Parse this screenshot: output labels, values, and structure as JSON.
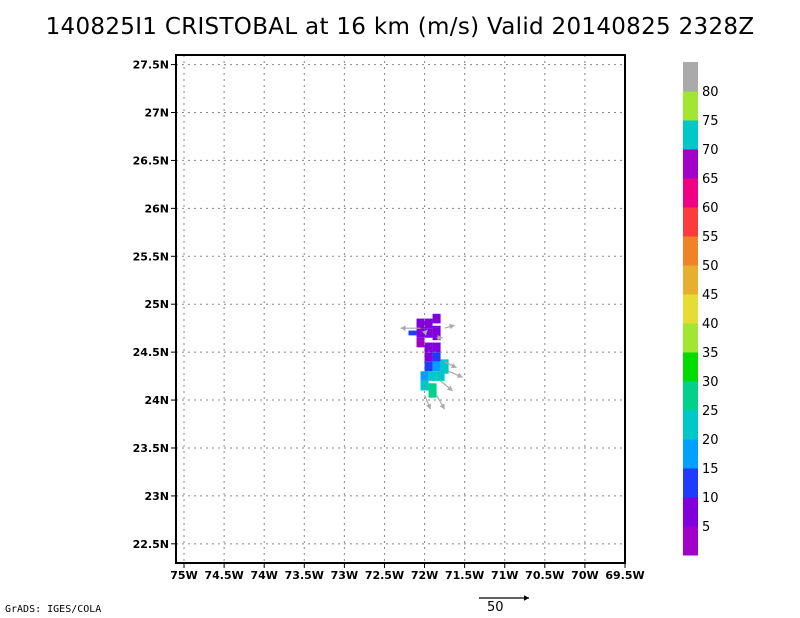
{
  "title": "140825I1 CRISTOBAL at 16 km (m/s) Valid 20140825 2328Z",
  "credit": "GrADS: IGES/COLA",
  "reference_vector_label": "50",
  "colorbar": {
    "labels": [
      "5",
      "10",
      "15",
      "20",
      "25",
      "30",
      "35",
      "40",
      "45",
      "50",
      "55",
      "60",
      "65",
      "70",
      "75",
      "80"
    ],
    "colors": [
      "#a000c8",
      "#8200dc",
      "#1e3cff",
      "#00a0ff",
      "#00c8c8",
      "#00d28c",
      "#00dc00",
      "#a0e632",
      "#e6dc32",
      "#e6af2d",
      "#f08228",
      "#fa3c3c",
      "#f00082",
      "#a000c8",
      "#00c8c8",
      "#a0e632",
      "#aaaaaa"
    ]
  },
  "chart_data": {
    "type": "heatmap",
    "title": "140825I1 CRISTOBAL at 16 km (m/s) Valid 20140825 2328Z",
    "xlabel": "",
    "ylabel": "",
    "xlim": [
      -75.1,
      -69.5
    ],
    "ylim": [
      22.3,
      27.6
    ],
    "grid": true,
    "x_ticks": [
      -75,
      -74.5,
      -74,
      -73.5,
      -73,
      -72.5,
      -72,
      -71.5,
      -71,
      -70.5,
      -70,
      -69.5
    ],
    "x_tick_labels": [
      "75W",
      "74.5W",
      "74W",
      "73.5W",
      "73W",
      "72.5W",
      "72W",
      "71.5W",
      "71W",
      "70.5W",
      "70W",
      "69.5W"
    ],
    "y_ticks": [
      22.5,
      23,
      23.5,
      24,
      24.5,
      25,
      25.5,
      26,
      26.5,
      27,
      27.5
    ],
    "y_tick_labels": [
      "22.5N",
      "23N",
      "23.5N",
      "24N",
      "24.5N",
      "25N",
      "25.5N",
      "26N",
      "26.5N",
      "27N",
      "27.5N"
    ],
    "cells": [
      {
        "lon": -72.05,
        "lat": 24.8,
        "w": 0.1,
        "h": 0.1,
        "color": "#8200dc"
      },
      {
        "lon": -71.95,
        "lat": 24.8,
        "w": 0.1,
        "h": 0.1,
        "color": "#8200dc"
      },
      {
        "lon": -71.85,
        "lat": 24.85,
        "w": 0.1,
        "h": 0.1,
        "color": "#8200dc"
      },
      {
        "lon": -72.15,
        "lat": 24.7,
        "w": 0.1,
        "h": 0.05,
        "color": "#1e3cff"
      },
      {
        "lon": -72.05,
        "lat": 24.7,
        "w": 0.1,
        "h": 0.1,
        "color": "#8200dc"
      },
      {
        "lon": -71.95,
        "lat": 24.7,
        "w": 0.1,
        "h": 0.1,
        "color": "#8200dc"
      },
      {
        "lon": -71.85,
        "lat": 24.7,
        "w": 0.1,
        "h": 0.15,
        "color": "#8200dc"
      },
      {
        "lon": -72.05,
        "lat": 24.6,
        "w": 0.1,
        "h": 0.1,
        "color": "#a000c8"
      },
      {
        "lon": -71.95,
        "lat": 24.55,
        "w": 0.1,
        "h": 0.1,
        "color": "#8200dc"
      },
      {
        "lon": -71.85,
        "lat": 24.55,
        "w": 0.1,
        "h": 0.1,
        "color": "#8200dc"
      },
      {
        "lon": -71.95,
        "lat": 24.45,
        "w": 0.1,
        "h": 0.1,
        "color": "#8200dc"
      },
      {
        "lon": -71.85,
        "lat": 24.45,
        "w": 0.1,
        "h": 0.1,
        "color": "#1e3cff"
      },
      {
        "lon": -71.95,
        "lat": 24.35,
        "w": 0.1,
        "h": 0.1,
        "color": "#1e3cff"
      },
      {
        "lon": -71.85,
        "lat": 24.35,
        "w": 0.1,
        "h": 0.1,
        "color": "#00a0ff"
      },
      {
        "lon": -71.75,
        "lat": 24.35,
        "w": 0.1,
        "h": 0.15,
        "color": "#00c8c8"
      },
      {
        "lon": -72.0,
        "lat": 24.25,
        "w": 0.1,
        "h": 0.1,
        "color": "#00a0ff"
      },
      {
        "lon": -71.9,
        "lat": 24.25,
        "w": 0.1,
        "h": 0.1,
        "color": "#00c8c8"
      },
      {
        "lon": -71.8,
        "lat": 24.25,
        "w": 0.1,
        "h": 0.1,
        "color": "#00c8c8"
      },
      {
        "lon": -72.0,
        "lat": 24.15,
        "w": 0.1,
        "h": 0.1,
        "color": "#00c8c8"
      },
      {
        "lon": -71.9,
        "lat": 24.1,
        "w": 0.1,
        "h": 0.15,
        "color": "#00d28c"
      }
    ],
    "vectors": [
      {
        "lon": -72.05,
        "lat": 24.75,
        "u": -20,
        "v": 0
      },
      {
        "lon": -72.0,
        "lat": 24.7,
        "u": 3,
        "v": 3
      },
      {
        "lon": -71.75,
        "lat": 24.75,
        "u": 10,
        "v": 3
      },
      {
        "lon": -71.85,
        "lat": 24.65,
        "u": 6,
        "v": 0
      },
      {
        "lon": -71.75,
        "lat": 24.4,
        "u": 12,
        "v": -6
      },
      {
        "lon": -71.7,
        "lat": 24.3,
        "u": 14,
        "v": -6
      },
      {
        "lon": -71.8,
        "lat": 24.2,
        "u": 12,
        "v": -10
      },
      {
        "lon": -71.85,
        "lat": 24.05,
        "u": 8,
        "v": -14
      },
      {
        "lon": -72.0,
        "lat": 24.05,
        "u": 6,
        "v": -14
      }
    ]
  }
}
